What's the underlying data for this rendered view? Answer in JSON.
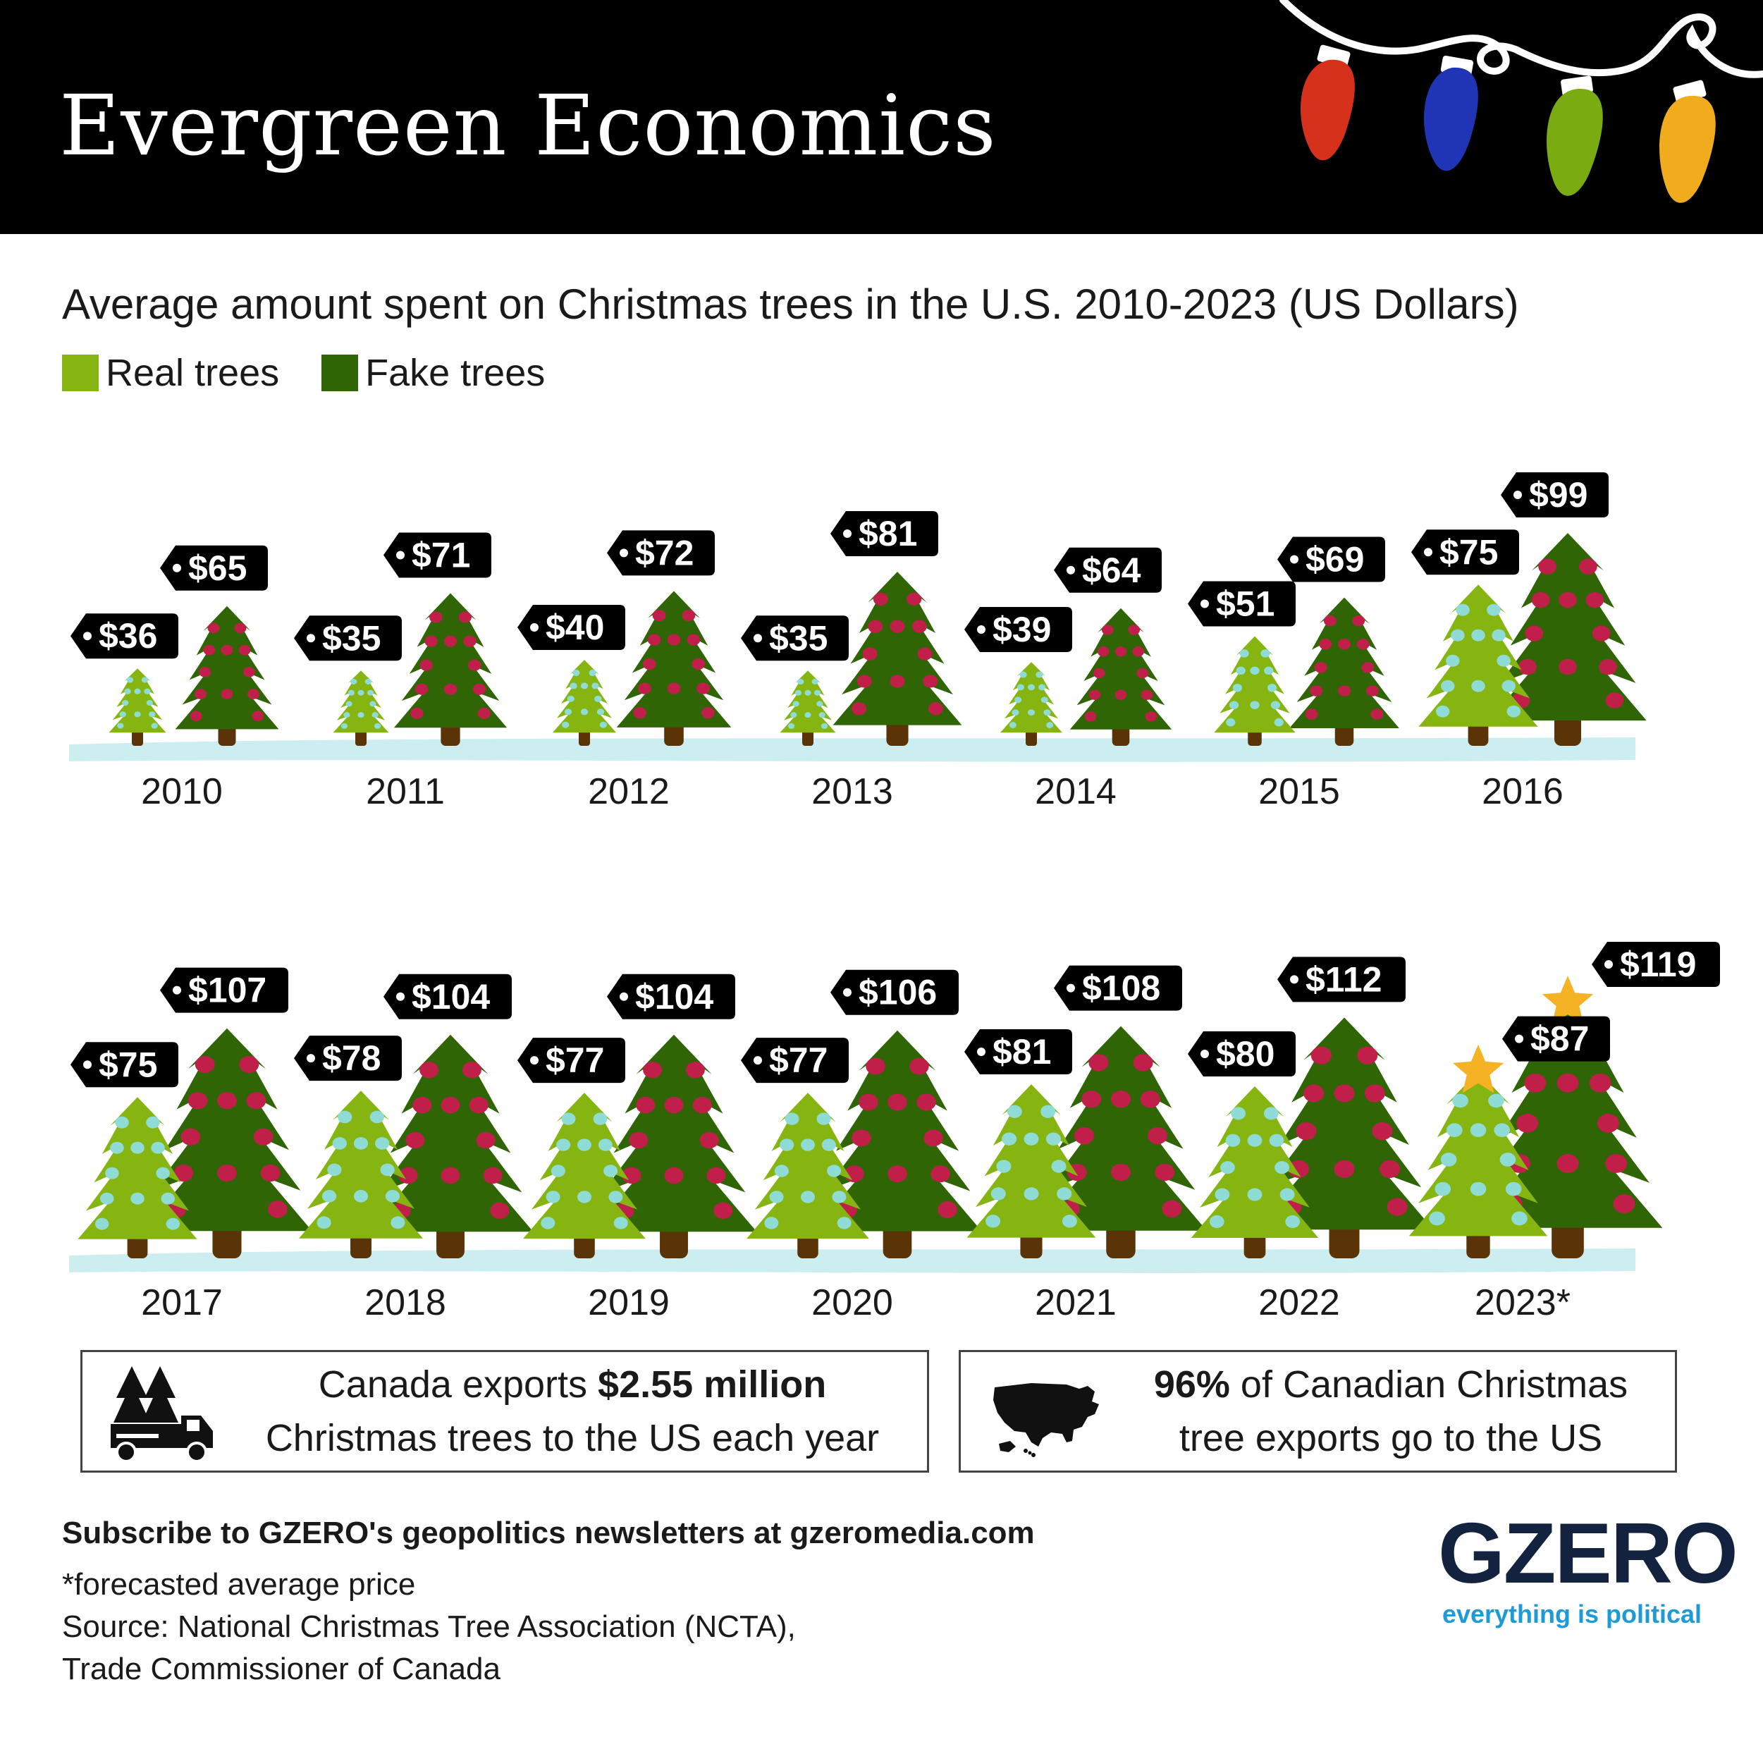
{
  "header": {
    "title": "Evergreen Economics",
    "bulb_colors": [
      "#d6321b",
      "#1f35b5",
      "#7aac12",
      "#f0ac1d"
    ]
  },
  "subtitle": "Average amount spent on Christmas trees in the U.S. 2010-2023 (US Dollars)",
  "legend": {
    "real_label": "Real trees",
    "fake_label": "Fake trees"
  },
  "colors": {
    "real_tree": "#86b511",
    "fake_tree": "#2f6504",
    "real_ornament": "#8fdcd7",
    "fake_ornament": "#c01f4a",
    "trunk": "#5a3306",
    "ground": "#cdeef0",
    "tag": "#000000",
    "star": "#f5b225"
  },
  "chart_data": {
    "type": "bar",
    "title": "Average amount spent on Christmas trees in the U.S. 2010-2023 (US Dollars)",
    "ylabel": "",
    "xlabel": "",
    "categories": [
      "2010",
      "2011",
      "2012",
      "2013",
      "2014",
      "2015",
      "2016",
      "2017",
      "2018",
      "2019",
      "2020",
      "2021",
      "2022",
      "2023*"
    ],
    "series": [
      {
        "name": "Real trees",
        "values": [
          36,
          35,
          40,
          35,
          39,
          51,
          75,
          75,
          78,
          77,
          77,
          81,
          80,
          87
        ]
      },
      {
        "name": "Fake trees",
        "values": [
          65,
          71,
          72,
          81,
          64,
          69,
          99,
          107,
          104,
          104,
          106,
          108,
          112,
          119
        ]
      }
    ],
    "value_labels": {
      "real": [
        "$36",
        "$35",
        "$40",
        "$35",
        "$39",
        "$51",
        "$75",
        "$75",
        "$78",
        "$77",
        "$77",
        "$81",
        "$80",
        "$87"
      ],
      "fake": [
        "$65",
        "$71",
        "$72",
        "$81",
        "$64",
        "$69",
        "$99",
        "$107",
        "$104",
        "$104",
        "$106",
        "$108",
        "$112",
        "$119"
      ]
    },
    "highlight_category": "2023*"
  },
  "facts": [
    {
      "pre": "Canada exports ",
      "bold": "$2.55 million",
      "post": "Christmas trees to the US each year",
      "icon": "truck-with-trees-icon"
    },
    {
      "pre": "",
      "bold": "96%",
      "mid": " of Canadian Christmas",
      "post": "tree exports go to the US",
      "icon": "us-map-icon"
    }
  ],
  "footer": {
    "subscribe": "Subscribe to GZERO's geopolitics newsletters at gzeromedia.com",
    "note": "*forecasted average price",
    "source_line1": "Source: National Christmas Tree Association (NCTA),",
    "source_line2": "Trade Commissioner of Canada"
  },
  "logo": {
    "wordmark": "GZERO",
    "tagline": "everything is political"
  }
}
